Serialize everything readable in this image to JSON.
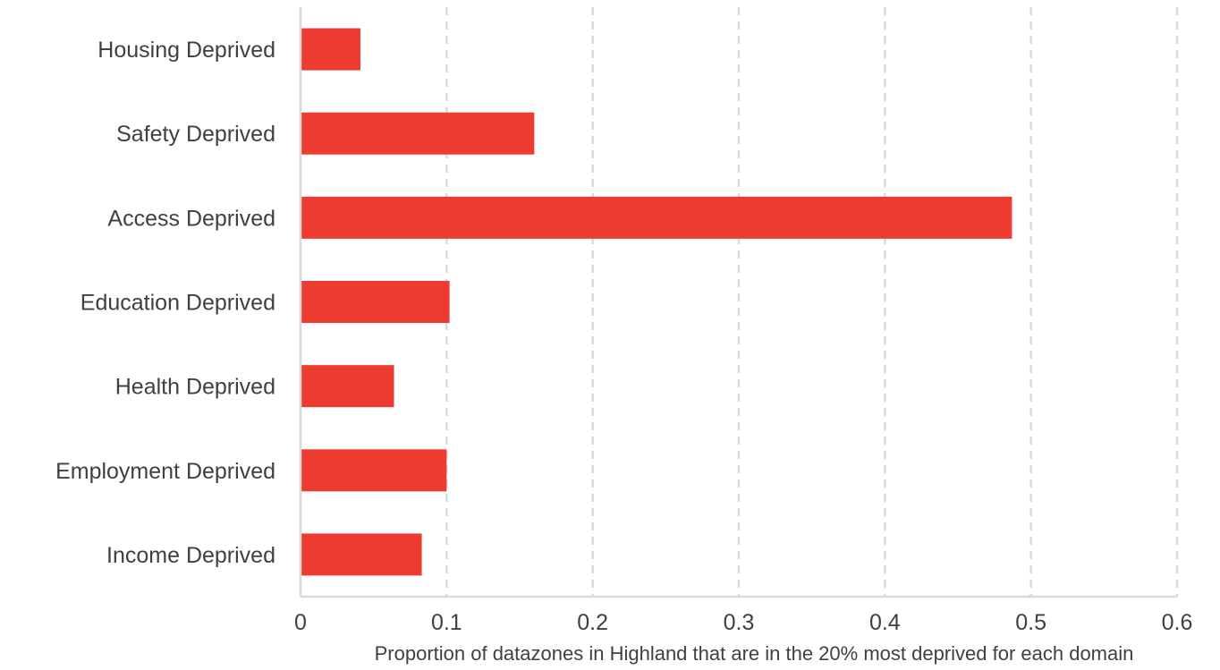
{
  "chart_data": {
    "type": "bar",
    "orientation": "horizontal",
    "categories": [
      "Housing Deprived",
      "Safety Deprived",
      "Access Deprived",
      "Education Deprived ",
      "Health Deprived",
      "Employment Deprived ",
      "Income Deprived"
    ],
    "values": [
      0.041,
      0.16,
      0.487,
      0.102,
      0.064,
      0.1,
      0.083
    ],
    "title": "",
    "xlabel": "Proportion of datazones in Highland that are in the 20% most deprived for each domain",
    "ylabel": "",
    "xlim": [
      0,
      0.6
    ],
    "xticks": [
      "0",
      "0.1",
      "0.2",
      "0.3",
      "0.4",
      "0.5",
      "0.6"
    ],
    "grid": "vertical dashed",
    "legend": "none",
    "bar_color": "#ee3b2f",
    "grid_color": "#d9d9d9",
    "axis_color": "#d9d9d9",
    "text_color": "#404040"
  }
}
